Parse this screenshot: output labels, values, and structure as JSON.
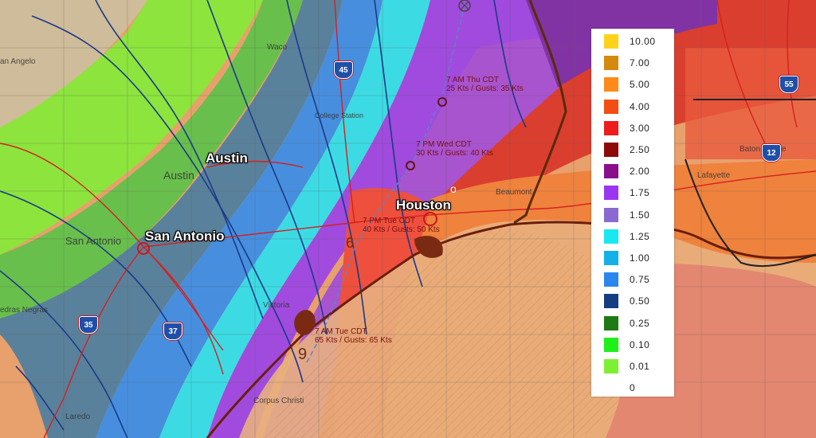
{
  "map": {
    "cities": [
      {
        "id": "austin",
        "name": "Austin"
      },
      {
        "id": "houston",
        "name": "Houston"
      },
      {
        "id": "san-antonio",
        "name": "San Antonio"
      }
    ],
    "towns": [
      "an Angelo",
      "Austin",
      "San Antonio",
      "Laredo",
      "edras Negras",
      "Corpus Christi",
      "College Station",
      "Victoria",
      "Baton Rouge",
      "Lafayette",
      "Beaumont",
      "Waco"
    ],
    "highways": [
      "45",
      "35",
      "37",
      "55",
      "12"
    ],
    "storm_track": [
      {
        "line1": "7 AM Tue CDT",
        "line2": "65 Kts / Gusts: 65 Kts"
      },
      {
        "line1": "7 PM Tue CDT",
        "line2": "40 Kts / Gusts: 50 Kts"
      },
      {
        "line1": "7 PM Wed CDT",
        "line2": "30 Kts / Gusts: 40 Kts"
      },
      {
        "line1": "7 AM Thu CDT",
        "line2": "25 Kts / Gusts: 35 Kts"
      }
    ],
    "storm_symbols": [
      "9",
      "6",
      "o"
    ]
  },
  "legend": {
    "items": [
      {
        "value": "10.00",
        "color": "#ffd21a"
      },
      {
        "value": "7.00",
        "color": "#d4890f"
      },
      {
        "value": "5.00",
        "color": "#ff8a1a"
      },
      {
        "value": "4.00",
        "color": "#f24d12"
      },
      {
        "value": "3.00",
        "color": "#ee1c1c"
      },
      {
        "value": "2.50",
        "color": "#8c0a0a"
      },
      {
        "value": "2.00",
        "color": "#8a0f8c"
      },
      {
        "value": "1.75",
        "color": "#9a36f0"
      },
      {
        "value": "1.50",
        "color": "#8a6ad0"
      },
      {
        "value": "1.25",
        "color": "#19e8ef"
      },
      {
        "value": "1.00",
        "color": "#12b1ea"
      },
      {
        "value": "0.75",
        "color": "#2b86ee"
      },
      {
        "value": "0.50",
        "color": "#143e80"
      },
      {
        "value": "0.25",
        "color": "#1e7a14"
      },
      {
        "value": "0.10",
        "color": "#1ff01a"
      },
      {
        "value": "0.01",
        "color": "#7ef033"
      },
      {
        "value": "0",
        "color": ""
      }
    ]
  }
}
